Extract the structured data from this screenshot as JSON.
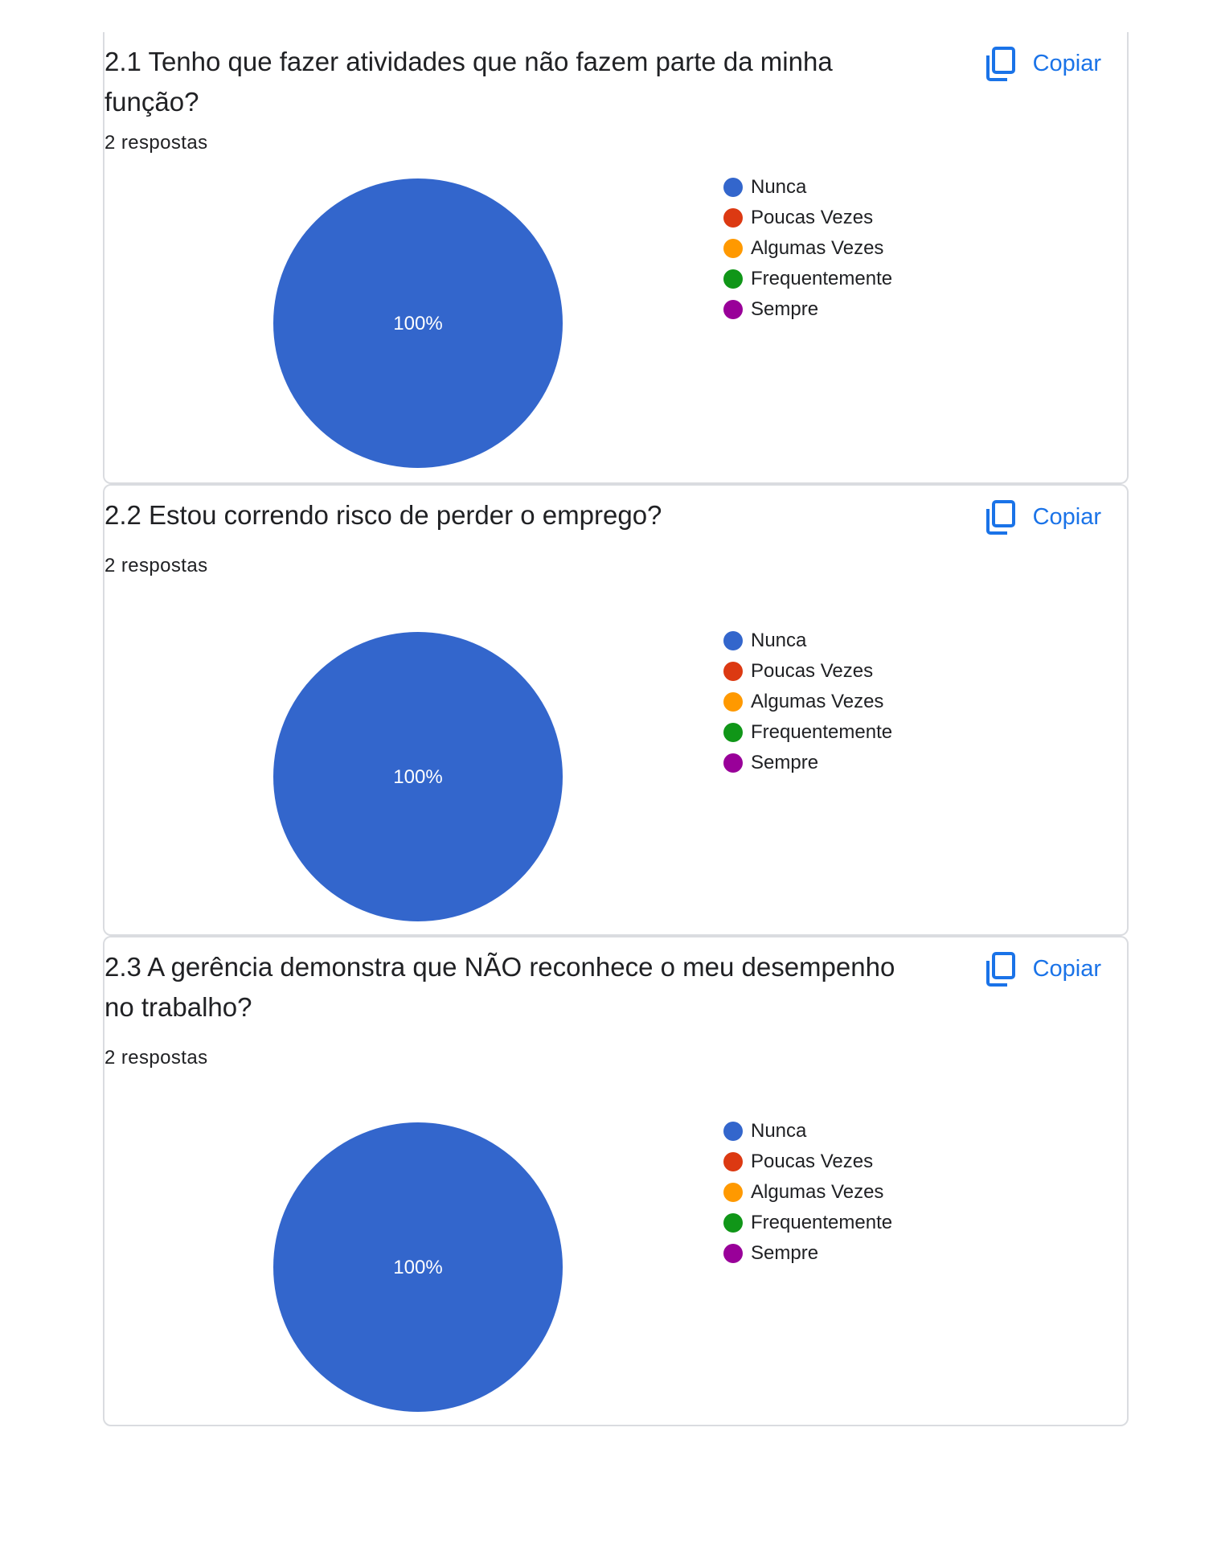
{
  "copy_label": "Copiar",
  "legend_labels": [
    "Nunca",
    "Poucas Vezes",
    "Algumas Vezes",
    "Frequentemente",
    "Sempre"
  ],
  "legend_colors": [
    "#3366cc",
    "#dc3912",
    "#ff9900",
    "#109618",
    "#990099"
  ],
  "questions": [
    {
      "title": "2.1 Tenho que fazer atividades que não fazem parte da minha função?",
      "responses": "2 respostas",
      "slice_label": "100%"
    },
    {
      "title": "2.2 Estou correndo risco de perder o emprego?",
      "responses": "2 respostas",
      "slice_label": "100%"
    },
    {
      "title": "2.3 A gerência demonstra que NÃO reconhece o meu desempenho no trabalho?",
      "responses": "2 respostas",
      "slice_label": "100%"
    }
  ],
  "chart_data": [
    {
      "type": "pie",
      "title": "2.1 Tenho que fazer atividades que não fazem parte da minha função?",
      "categories": [
        "Nunca",
        "Poucas Vezes",
        "Algumas Vezes",
        "Frequentemente",
        "Sempre"
      ],
      "values": [
        100,
        0,
        0,
        0,
        0
      ],
      "legend": "right"
    },
    {
      "type": "pie",
      "title": "2.2 Estou correndo risco de perder o emprego?",
      "categories": [
        "Nunca",
        "Poucas Vezes",
        "Algumas Vezes",
        "Frequentemente",
        "Sempre"
      ],
      "values": [
        100,
        0,
        0,
        0,
        0
      ],
      "legend": "right"
    },
    {
      "type": "pie",
      "title": "2.3 A gerência demonstra que NÃO reconhece o meu desempenho no trabalho?",
      "categories": [
        "Nunca",
        "Poucas Vezes",
        "Algumas Vezes",
        "Frequentemente",
        "Sempre"
      ],
      "values": [
        100,
        0,
        0,
        0,
        0
      ],
      "legend": "right"
    }
  ]
}
